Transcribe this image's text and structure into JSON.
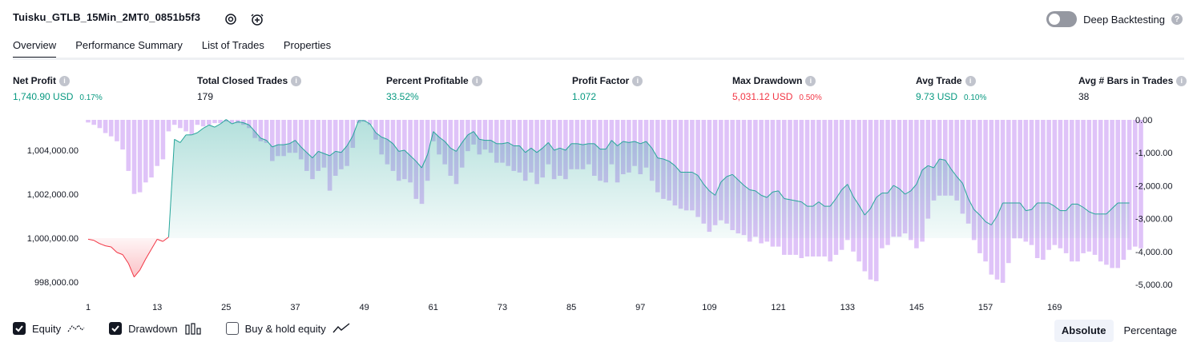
{
  "header": {
    "title": "Tuisku_GTLB_15Min_2MT0_0851b5f3",
    "deep_backtesting_label": "Deep Backtesting"
  },
  "tabs": [
    {
      "label": "Overview",
      "active": true
    },
    {
      "label": "Performance Summary",
      "active": false
    },
    {
      "label": "List of Trades",
      "active": false
    },
    {
      "label": "Properties",
      "active": false
    }
  ],
  "metrics": {
    "net_profit": {
      "label": "Net Profit",
      "value": "1,740.90 USD",
      "sub": "0.17%"
    },
    "total_closed_trades": {
      "label": "Total Closed Trades",
      "value": "179"
    },
    "percent_profitable": {
      "label": "Percent Profitable",
      "value": "33.52%"
    },
    "profit_factor": {
      "label": "Profit Factor",
      "value": "1.072"
    },
    "max_drawdown": {
      "label": "Max Drawdown",
      "value": "5,031.12 USD",
      "sub": "0.50%"
    },
    "avg_trade": {
      "label": "Avg Trade",
      "value": "9.73 USD",
      "sub": "0.10%"
    },
    "avg_bars": {
      "label": "Avg # Bars in Trades",
      "value": "38"
    }
  },
  "legend": {
    "equity": {
      "label": "Equity",
      "checked": true
    },
    "drawdown": {
      "label": "Drawdown",
      "checked": true
    },
    "buy_hold": {
      "label": "Buy & hold equity",
      "checked": false
    }
  },
  "scale_switch": {
    "absolute": "Absolute",
    "percentage": "Percentage",
    "selected": "Absolute"
  },
  "colors": {
    "profit": "#089981",
    "loss": "#f23645",
    "drawdown_bar": "#d9b8f7",
    "equity_line": "#26a69a"
  },
  "chart_data": {
    "type": "area",
    "x_ticks": [
      "1",
      "13",
      "25",
      "37",
      "49",
      "61",
      "73",
      "85",
      "97",
      "109",
      "121",
      "133",
      "145",
      "157",
      "169"
    ],
    "x_tick_values": [
      1,
      13,
      25,
      37,
      49,
      61,
      73,
      85,
      97,
      109,
      121,
      133,
      145,
      157,
      169
    ],
    "y_left_ticks": [
      "1,004,000.00",
      "1,002,000.00",
      "1,000,000.00",
      "998,000.00"
    ],
    "y_left_tick_values": [
      1004000,
      1002000,
      1000000,
      998000
    ],
    "y_right_ticks": [
      "0.00",
      "-1,000.00",
      "-2,000.00",
      "-3,000.00",
      "-4,000.00",
      "-5,000.00"
    ],
    "y_right_tick_values": [
      0,
      -1000,
      -2000,
      -3000,
      -4000,
      -5000
    ],
    "baseline": 1000000,
    "series": [
      {
        "name": "Equity",
        "values": [
          999950,
          999900,
          999750,
          999650,
          999600,
          999350,
          999250,
          998850,
          998230,
          998550,
          999050,
          999500,
          999950,
          999850,
          1000050,
          1004500,
          1004350,
          1004700,
          1004700,
          1004800,
          1005000,
          1005150,
          1005050,
          1005200,
          1005400,
          1005200,
          1005300,
          1005250,
          1005150,
          1004850,
          1004550,
          1004450,
          1004150,
          1004250,
          1004250,
          1004300,
          1004450,
          1004150,
          1003900,
          1003650,
          1003950,
          1003850,
          1003750,
          1003950,
          1003900,
          1004200,
          1004650,
          1005350,
          1005350,
          1005200,
          1004800,
          1004600,
          1004500,
          1004300,
          1003950,
          1004000,
          1003750,
          1003500,
          1003200,
          1003800,
          1004850,
          1004600,
          1004400,
          1004100,
          1003950,
          1004350,
          1004700,
          1004850,
          1004500,
          1004450,
          1004450,
          1004300,
          1004300,
          1004350,
          1004200,
          1004200,
          1003900,
          1004100,
          1003900,
          1004100,
          1004350,
          1004000,
          1004100,
          1004000,
          1004300,
          1004300,
          1004250,
          1004300,
          1004300,
          1004050,
          1004050,
          1004450,
          1004200,
          1004400,
          1004350,
          1004400,
          1004300,
          1004400,
          1004100,
          1003650,
          1003600,
          1003500,
          1003300,
          1003000,
          1003000,
          1003000,
          1002850,
          1002450,
          1002150,
          1001950,
          1002550,
          1002800,
          1002900,
          1002650,
          1002400,
          1002200,
          1002150,
          1001950,
          1001850,
          1002100,
          1002150,
          1001800,
          1001750,
          1001700,
          1001650,
          1001450,
          1001450,
          1001650,
          1001450,
          1001450,
          1001800,
          1002200,
          1002450,
          1001900,
          1001500,
          1001050,
          1001350,
          1001850,
          1002050,
          1002050,
          1002400,
          1002250,
          1002000,
          1002150,
          1002450,
          1003100,
          1003300,
          1003200,
          1003600,
          1003550,
          1003150,
          1002800,
          1002500,
          1001800,
          1001300,
          1001050,
          1000750,
          1000600,
          1001000,
          1001600,
          1001600,
          1001600,
          1001600,
          1001250,
          1001300,
          1001600,
          1001600,
          1001600,
          1001450,
          1001250,
          1001250,
          1001550,
          1001550,
          1001400,
          1001200,
          1001100,
          1001100,
          1001100,
          1001350,
          1001600,
          1001600,
          1001600
        ]
      },
      {
        "name": "Drawdown",
        "values": [
          -80,
          -150,
          -250,
          -400,
          -500,
          -650,
          -900,
          -1550,
          -2250,
          -2200,
          -1900,
          -1750,
          -1400,
          -1200,
          -350,
          -150,
          -250,
          -350,
          -450,
          -150,
          -200,
          -150,
          -100,
          -100,
          -50,
          -100,
          -100,
          -150,
          -250,
          -550,
          -650,
          -700,
          -1250,
          -1100,
          -1100,
          -1000,
          -1000,
          -1200,
          -1550,
          -1800,
          -1550,
          -1450,
          -2150,
          -1700,
          -1500,
          -1400,
          -850,
          -100,
          -50,
          -150,
          -600,
          -1050,
          -1350,
          -1550,
          -1850,
          -1800,
          -1900,
          -2400,
          -2550,
          -1850,
          -650,
          -1050,
          -1350,
          -1700,
          -1950,
          -1450,
          -950,
          -750,
          -1050,
          -900,
          -1000,
          -1300,
          -1300,
          -1400,
          -1550,
          -1600,
          -1850,
          -1600,
          -1950,
          -1750,
          -1350,
          -1800,
          -1700,
          -1800,
          -1500,
          -1500,
          -1500,
          -1350,
          -1700,
          -1850,
          -1900,
          -1350,
          -1900,
          -1650,
          -1600,
          -1400,
          -1650,
          -1450,
          -1850,
          -2200,
          -2400,
          -2450,
          -2600,
          -2700,
          -2750,
          -2750,
          -2950,
          -3150,
          -3400,
          -3200,
          -3050,
          -3150,
          -3350,
          -3450,
          -3500,
          -3700,
          -3550,
          -3750,
          -3700,
          -3850,
          -3850,
          -4100,
          -4100,
          -4100,
          -4200,
          -4150,
          -4150,
          -4150,
          -4150,
          -4300,
          -4100,
          -3950,
          -3650,
          -4000,
          -4300,
          -4600,
          -4850,
          -4900,
          -3900,
          -3800,
          -3550,
          -3550,
          -3450,
          -3650,
          -3900,
          -3700,
          -3000,
          -2450,
          -2300,
          -2300,
          -2300,
          -2450,
          -2850,
          -3150,
          -3650,
          -4050,
          -4300,
          -4700,
          -4850,
          -4950,
          -4350,
          -3600,
          -3600,
          -3700,
          -3800,
          -4200,
          -4250,
          -3950,
          -3800,
          -3900,
          -4050,
          -4300,
          -4300,
          -4050,
          -4000,
          -4100,
          -4300,
          -4400,
          -4500,
          -4500,
          -4250,
          -3950,
          -3850,
          -3900
        ]
      }
    ],
    "grid": false,
    "legend_position": "bottom-left"
  }
}
